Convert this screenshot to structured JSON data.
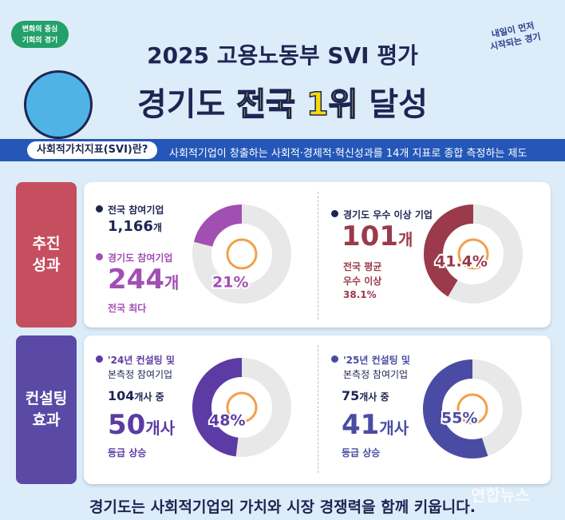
{
  "logo_left": [
    "변화의 중심",
    "기회의 경기"
  ],
  "logo_right": [
    "내일이 먼저",
    "시작되는 경기"
  ],
  "header": {
    "title_line1": "2025 고용노동부 SVI 평가",
    "title_prefix": "경기도",
    "title_highlight": "전국 1위",
    "title_suffix": "달성"
  },
  "definition": {
    "label": "사회적가치지표(SVI)란?",
    "text": "사회적기업이 창출하는 사회적·경제적·혁신성과를 14개 지표로 종합 측정하는 제도"
  },
  "sections": [
    {
      "label": [
        "추진",
        "성과"
      ],
      "panels": [
        {
          "items": [
            {
              "title": [
                "전국 참여기업"
              ],
              "number": "1,166",
              "unit": "개"
            },
            {
              "title": [
                "경기도 참여기업"
              ],
              "number": "244",
              "unit": "개",
              "note": [
                "전국 최다"
              ]
            }
          ],
          "donut": {
            "value": 21,
            "label": "21%",
            "color": "#a24fb3"
          }
        },
        {
          "items": [
            {
              "title": [
                "경기도 우수 이상 기업"
              ],
              "number": "101",
              "unit": "개",
              "note": [
                "전국 평균",
                "우수 이상",
                "38.1%"
              ]
            }
          ],
          "donut": {
            "value": 41.4,
            "label": "41.4%",
            "color": "#9a3a4b"
          }
        }
      ]
    },
    {
      "label": [
        "컨설팅",
        "효과"
      ],
      "panels": [
        {
          "items": [
            {
              "title": [
                "'24년 컨설팅 및",
                "본측정 참여기업"
              ],
              "base_number": "104",
              "base_unit": "개사 중",
              "number": "50",
              "unit": "개사",
              "note": [
                "등급 상승"
              ]
            }
          ],
          "donut": {
            "value": 48,
            "label": "48%",
            "color": "#5c3ba4"
          }
        },
        {
          "items": [
            {
              "title": [
                "'25년 컨설팅 및",
                "본측정 참여기업"
              ],
              "base_number": "75",
              "base_unit": "개사 중",
              "number": "41",
              "unit": "개사",
              "note": [
                "등급 상승"
              ]
            }
          ],
          "donut": {
            "value": 55,
            "label": "55%",
            "color": "#4a4ca3"
          }
        }
      ]
    }
  ],
  "footer": "경기도는 사회적기업의 가치와 시장 경쟁력을 함께 키웁니다.",
  "watermark": "연합뉴스"
}
